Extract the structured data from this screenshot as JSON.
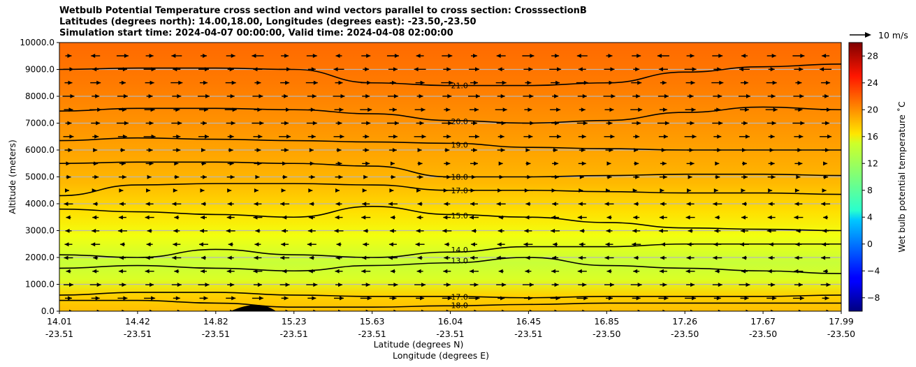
{
  "title": {
    "line1": "Wetbulb Potential Temperature cross section and wind vectors parallel to cross section: CrosssectionB",
    "line2": "Latitudes (degrees north): 14.00,18.00, Longitudes (degrees east): -23.50,-23.50",
    "line3": "Simulation start time: 2024-04-07 00:00:00, Valid time: 2024-04-08 02:00:00"
  },
  "chart_data": {
    "type": "heatmap",
    "ylabel": "Altitude (meters)",
    "xlabel": "Latitude (degrees N)",
    "xlabel2": "Longitude (degrees E)",
    "ylim": [
      0,
      10000
    ],
    "yticks": [
      "0.0",
      "1000.0",
      "2000.0",
      "3000.0",
      "4000.0",
      "5000.0",
      "6000.0",
      "7000.0",
      "8000.0",
      "9000.0",
      "10000.0"
    ],
    "xticks": [
      {
        "lat": "14.01",
        "lon": "-23.51"
      },
      {
        "lat": "14.42",
        "lon": "-23.51"
      },
      {
        "lat": "14.82",
        "lon": "-23.51"
      },
      {
        "lat": "15.23",
        "lon": "-23.51"
      },
      {
        "lat": "15.63",
        "lon": "-23.51"
      },
      {
        "lat": "16.04",
        "lon": "-23.51"
      },
      {
        "lat": "16.45",
        "lon": "-23.51"
      },
      {
        "lat": "16.85",
        "lon": "-23.50"
      },
      {
        "lat": "17.26",
        "lon": "-23.50"
      },
      {
        "lat": "17.67",
        "lon": "-23.50"
      },
      {
        "lat": "17.99",
        "lon": "-23.50"
      }
    ],
    "colorbar": {
      "label": "Wet bulb potential temperature ˚C",
      "range": [
        -10,
        30
      ],
      "ticks": [
        "−8",
        "−4",
        "0",
        "4",
        "8",
        "12",
        "16",
        "20",
        "24",
        "28"
      ],
      "colormap": "jet"
    },
    "grid": "horizontal",
    "quiver_key": "10 m/s",
    "contours": [
      {
        "label": "21.0",
        "level": 21,
        "y": [
          9000,
          9050,
          9050,
          9000,
          8500,
          8400,
          8400,
          8500,
          8900,
          9100,
          9200
        ]
      },
      {
        "label": "20.0",
        "level": 20,
        "y": [
          7450,
          7550,
          7550,
          7500,
          7350,
          7100,
          7000,
          7100,
          7400,
          7600,
          7500
        ]
      },
      {
        "label": "19.0",
        "level": 19,
        "y": [
          6350,
          6450,
          6400,
          6350,
          6300,
          6250,
          6100,
          6050,
          6000,
          6000,
          6000
        ]
      },
      {
        "label": "18.0",
        "level": 18,
        "y": [
          5500,
          5550,
          5550,
          5500,
          5400,
          5000,
          5000,
          5050,
          5100,
          5100,
          5050
        ]
      },
      {
        "label": "17.0",
        "level": 17,
        "y": [
          4300,
          4700,
          4750,
          4750,
          4700,
          4500,
          4500,
          4450,
          4400,
          4400,
          4350
        ]
      },
      {
        "label": "15.0",
        "level": 15,
        "y": [
          3800,
          3700,
          3600,
          3500,
          3900,
          3600,
          3500,
          3300,
          3100,
          3050,
          3000
        ]
      },
      {
        "label": "14.0",
        "level": 14,
        "y": [
          2100,
          2000,
          2300,
          2100,
          2000,
          2200,
          2400,
          2400,
          2500,
          2500,
          2500
        ]
      },
      {
        "label": "13.0",
        "level": 13,
        "y": [
          1600,
          1700,
          1600,
          1500,
          1700,
          1800,
          2000,
          1700,
          1600,
          1500,
          1400
        ]
      },
      {
        "label": "17.0",
        "level": 17,
        "y": [
          600,
          700,
          700,
          600,
          550,
          550,
          500,
          550,
          550,
          550,
          600
        ]
      },
      {
        "label": "18.0",
        "level": 18,
        "y": [
          400,
          400,
          300,
          150,
          150,
          200,
          250,
          300,
          300,
          300,
          300
        ]
      }
    ]
  }
}
